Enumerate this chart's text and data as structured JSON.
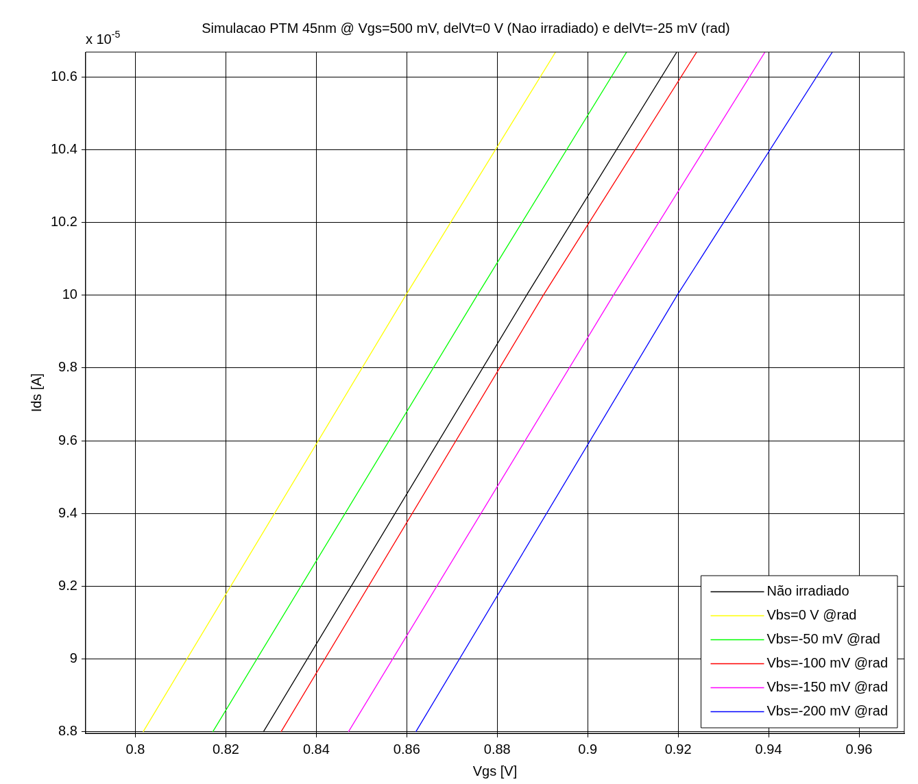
{
  "chart_data": {
    "type": "line",
    "title": "Simulacao PTM 45nm @ Vgs=500 mV, delVt=0 V (Nao irradiado) e delVt=-25 mV (rad)",
    "xlabel": "Vgs [V]",
    "ylabel": "Ids [A]",
    "annotations": [
      "x 10$^{-5}$"
    ],
    "xlim": [
      0.789,
      0.97
    ],
    "ylim": [
      8.796,
      10.668
    ],
    "xticks": [
      0.8,
      0.82,
      0.84,
      0.86,
      0.88,
      0.9,
      0.92,
      0.94,
      0.96
    ],
    "yticks": [
      8.8,
      9,
      9.2,
      9.4,
      9.6,
      9.8,
      10,
      10.2,
      10.4,
      10.6
    ],
    "grid": true,
    "legend": "bottom right",
    "marker": "none",
    "line_style": "solid",
    "series": [
      {
        "name": "Não irradiado",
        "color": "#000000",
        "x": [
          0.8283,
          0.8865,
          0.9197
        ],
        "values": [
          8.8,
          10.0,
          10.668
        ]
      },
      {
        "name": "Vbs=0 V @rad",
        "color": "#ffff00",
        "x": [
          0.8017,
          0.8598,
          0.8929
        ],
        "values": [
          8.8,
          10.0,
          10.668
        ]
      },
      {
        "name": "Vbs=-50 mV @rad",
        "color": "#00ff00",
        "x": [
          0.8171,
          0.8756,
          0.9086
        ],
        "values": [
          8.8,
          10.0,
          10.668
        ]
      },
      {
        "name": "Vbs=-100 mV @rad",
        "color": "#ff0000",
        "x": [
          0.8322,
          0.8902,
          0.9241
        ],
        "values": [
          8.8,
          10.0,
          10.668
        ]
      },
      {
        "name": "Vbs=-150 mV @rad",
        "color": "#ff00ff",
        "x": [
          0.8471,
          0.9057,
          0.9392
        ],
        "values": [
          8.8,
          10.0,
          10.668
        ]
      },
      {
        "name": "Vbs=-200 mV @rad",
        "color": "#0000ff",
        "x": [
          0.862,
          0.9198,
          0.9541
        ],
        "values": [
          8.8,
          10.0,
          10.668
        ]
      }
    ]
  }
}
